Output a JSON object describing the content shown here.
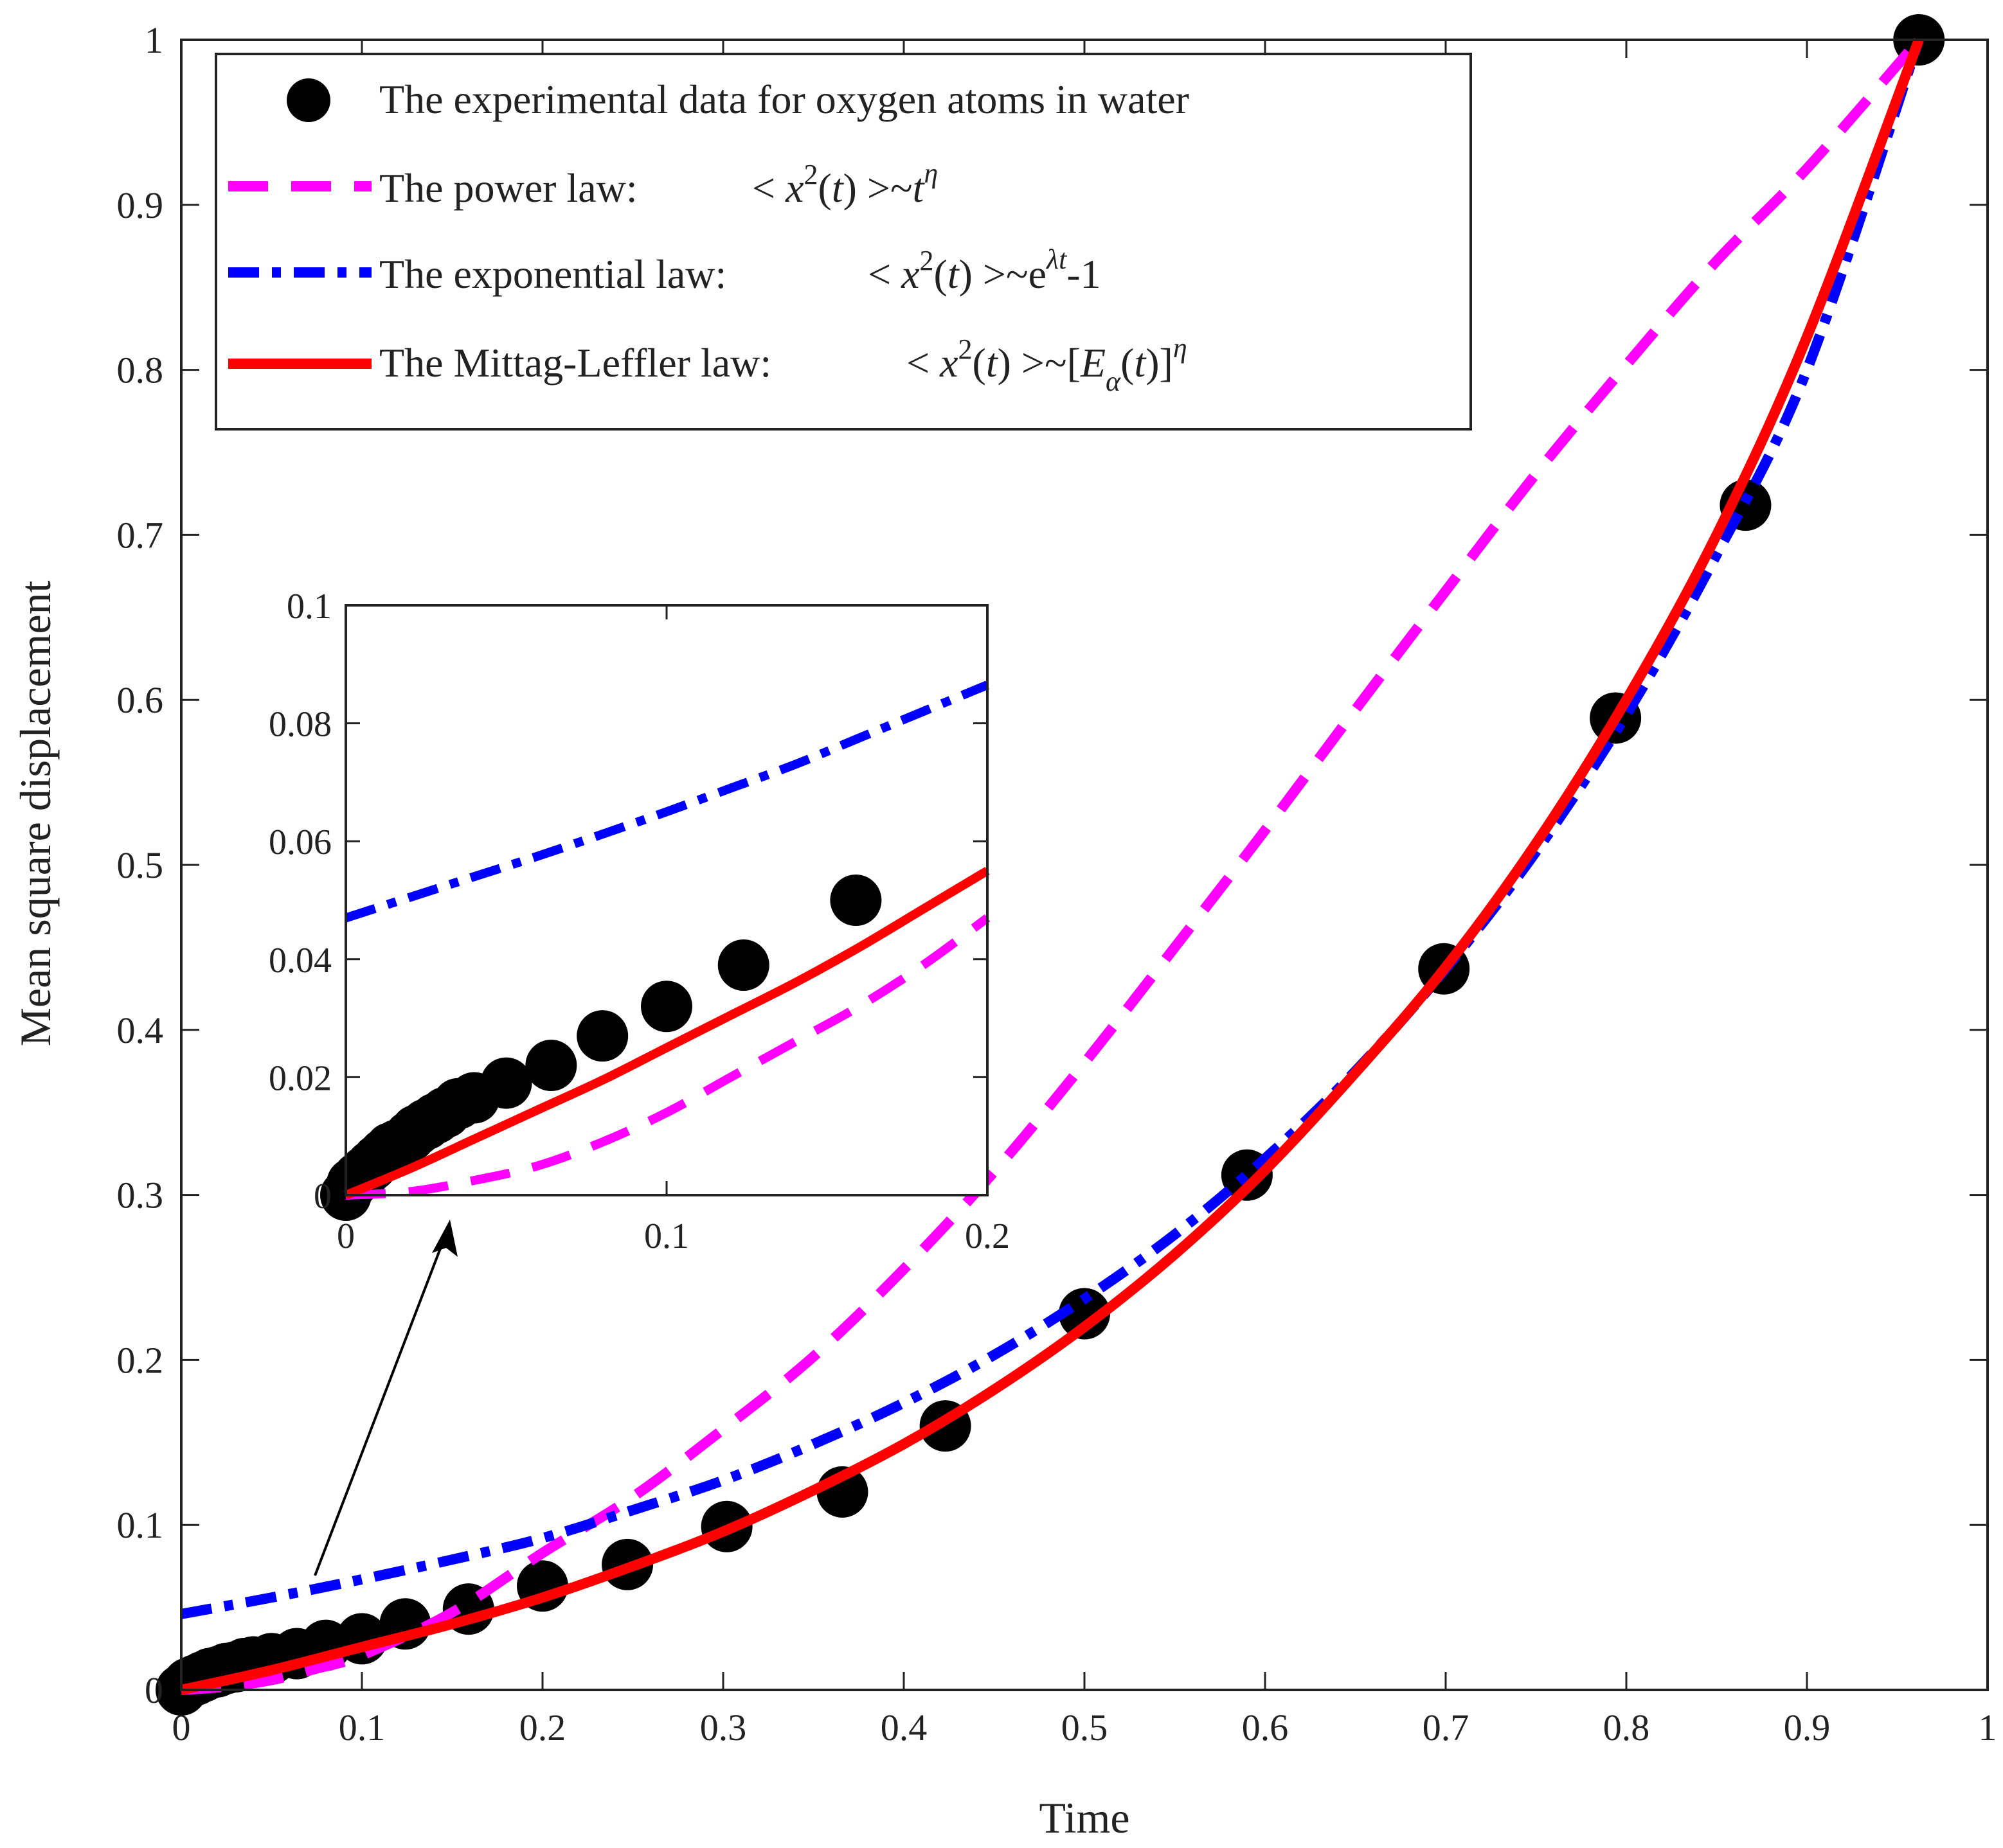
{
  "chart_data": [
    {
      "type": "line",
      "xlabel": "Time",
      "ylabel": "Mean square displacement",
      "xlim": [
        0,
        1
      ],
      "ylim": [
        0,
        1
      ],
      "xticks": [
        "0",
        "0.1",
        "0.2",
        "0.3",
        "0.4",
        "0.5",
        "0.6",
        "0.7",
        "0.8",
        "0.9",
        "1"
      ],
      "yticks": [
        "0",
        "0.1",
        "0.2",
        "0.3",
        "0.4",
        "0.5",
        "0.6",
        "0.7",
        "0.8",
        "0.9",
        "1"
      ],
      "grid": false,
      "legend_position": "top-left",
      "series": [
        {
          "name": "The experimental data for oxygen atoms in water",
          "style": "markers",
          "color": "#000000",
          "x": [
            0,
            0.004,
            0.008,
            0.012,
            0.016,
            0.02,
            0.025,
            0.03,
            0.035,
            0.04,
            0.05,
            0.064,
            0.08,
            0.1,
            0.124,
            0.159,
            0.2,
            0.247,
            0.302,
            0.366,
            0.423,
            0.5,
            0.59,
            0.699,
            0.794,
            0.866,
            0.962
          ],
          "y": [
            0,
            0.004,
            0.006,
            0.008,
            0.01,
            0.011,
            0.013,
            0.014,
            0.016,
            0.017,
            0.019,
            0.022,
            0.027,
            0.031,
            0.04,
            0.049,
            0.063,
            0.076,
            0.099,
            0.12,
            0.16,
            0.228,
            0.312,
            0.437,
            0.589,
            0.718,
            1
          ]
        },
        {
          "name": "The power law:",
          "style": "dashed",
          "color": "#ff00ff",
          "x": [
            0,
            0.025,
            0.05,
            0.075,
            0.1,
            0.15,
            0.2,
            0.25,
            0.3,
            0.35,
            0.4,
            0.45,
            0.5,
            0.55,
            0.6,
            0.65,
            0.7,
            0.75,
            0.8,
            0.85,
            0.9,
            0.962
          ],
          "y": [
            0,
            0.002,
            0.006,
            0.013,
            0.021,
            0.047,
            0.083,
            0.117,
            0.158,
            0.202,
            0.255,
            0.314,
            0.38,
            0.45,
            0.521,
            0.594,
            0.666,
            0.737,
            0.803,
            0.866,
            0.922,
            1
          ]
        },
        {
          "name": "The exponential  law:",
          "style": "dashdot",
          "color": "#0000ff",
          "x": [
            0,
            0.05,
            0.1,
            0.15,
            0.2,
            0.25,
            0.3,
            0.35,
            0.4,
            0.45,
            0.5,
            0.55,
            0.6,
            0.65,
            0.7,
            0.75,
            0.8,
            0.85,
            0.9,
            0.962
          ],
          "y": [
            0.046,
            0.056,
            0.067,
            0.079,
            0.092,
            0.109,
            0.127,
            0.149,
            0.174,
            0.203,
            0.237,
            0.276,
            0.322,
            0.375,
            0.437,
            0.508,
            0.591,
            0.688,
            0.8,
            1
          ]
        },
        {
          "name": "The Mittag-Leffler  law:",
          "style": "solid",
          "color": "#ff0000",
          "x": [
            0,
            0.05,
            0.1,
            0.15,
            0.2,
            0.25,
            0.3,
            0.35,
            0.4,
            0.45,
            0.5,
            0.55,
            0.6,
            0.65,
            0.7,
            0.75,
            0.8,
            0.85,
            0.9,
            0.962
          ],
          "y": [
            0,
            0.012,
            0.026,
            0.04,
            0.056,
            0.075,
            0.096,
            0.121,
            0.149,
            0.182,
            0.22,
            0.264,
            0.315,
            0.374,
            0.438,
            0.513,
            0.6,
            0.7,
            0.82,
            1
          ]
        }
      ],
      "legend": {
        "entries": [
          {
            "text": "The experimental data for oxygen atoms in water",
            "formula": ""
          },
          {
            "text": "The power law:",
            "formula": "< x2(t) >~tη"
          },
          {
            "text": "The exponential  law:",
            "formula": "< x2(t) >~eλt-1"
          },
          {
            "text": "The Mittag-Leffler  law:",
            "formula": "< x2(t) >~[Eα(t)]η"
          }
        ]
      }
    },
    {
      "type": "line",
      "xlabel": "",
      "ylabel": "",
      "xlim": [
        0,
        0.2
      ],
      "ylim": [
        0,
        0.1
      ],
      "xticks": [
        "0",
        "0.1",
        "0.2"
      ],
      "yticks": [
        "0",
        "0.02",
        "0.04",
        "0.06",
        "0.08",
        "0.1"
      ],
      "grid": false,
      "series": [
        {
          "name": "The experimental data for oxygen atoms in water",
          "style": "markers",
          "color": "#000000",
          "x": [
            0,
            0.002,
            0.004,
            0.006,
            0.008,
            0.01,
            0.012,
            0.014,
            0.016,
            0.018,
            0.02,
            0.022,
            0.025,
            0.028,
            0.031,
            0.035,
            0.04,
            0.05,
            0.064,
            0.08,
            0.1,
            0.124,
            0.159
          ],
          "y": [
            0,
            0.002,
            0.003,
            0.004,
            0.005,
            0.006,
            0.007,
            0.008,
            0.0085,
            0.009,
            0.01,
            0.011,
            0.012,
            0.013,
            0.014,
            0.0155,
            0.0165,
            0.019,
            0.022,
            0.027,
            0.032,
            0.039,
            0.05
          ]
        },
        {
          "name": "The power law:",
          "style": "dashed",
          "color": "#ff00ff",
          "x": [
            0,
            0.02,
            0.04,
            0.06,
            0.08,
            0.1,
            0.12,
            0.14,
            0.16,
            0.18,
            0.2
          ],
          "y": [
            0,
            0.0006,
            0.0025,
            0.005,
            0.009,
            0.014,
            0.02,
            0.026,
            0.032,
            0.039,
            0.047
          ]
        },
        {
          "name": "The exponential  law:",
          "style": "dashdot",
          "color": "#0000ff",
          "x": [
            0,
            0.02,
            0.04,
            0.06,
            0.08,
            0.1,
            0.12,
            0.14,
            0.16,
            0.18,
            0.2
          ],
          "y": [
            0.047,
            0.0505,
            0.054,
            0.0575,
            0.0612,
            0.065,
            0.069,
            0.073,
            0.0775,
            0.082,
            0.0865
          ]
        },
        {
          "name": "The Mittag-Leffler  law:",
          "style": "solid",
          "color": "#ff0000",
          "x": [
            0,
            0.02,
            0.04,
            0.06,
            0.08,
            0.1,
            0.12,
            0.14,
            0.16,
            0.18,
            0.2
          ],
          "y": [
            0,
            0.0045,
            0.0095,
            0.0145,
            0.0195,
            0.025,
            0.0305,
            0.036,
            0.042,
            0.0485,
            0.055
          ]
        }
      ]
    }
  ]
}
